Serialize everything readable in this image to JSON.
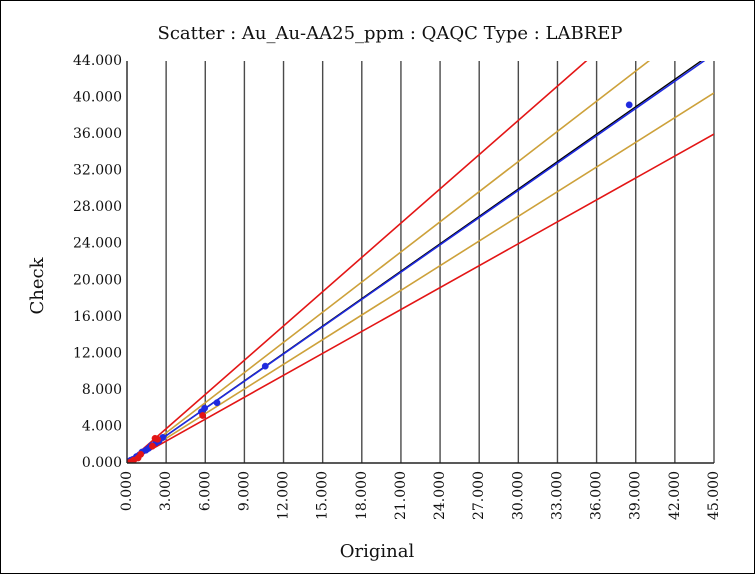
{
  "chart_data": {
    "type": "scatter",
    "title": "Scatter : Au_Au-AA25_ppm : QAQC Type : LABREP",
    "xlabel": "Original",
    "ylabel": "Check",
    "xlim": [
      0,
      45
    ],
    "ylim": [
      0,
      44
    ],
    "x_ticks": [
      "0.000",
      "3.000",
      "6.000",
      "9.000",
      "12.000",
      "15.000",
      "18.000",
      "21.000",
      "24.000",
      "27.000",
      "30.000",
      "33.000",
      "36.000",
      "39.000",
      "42.000",
      "45.000"
    ],
    "y_ticks": [
      "0.000",
      "4.000",
      "8.000",
      "12.000",
      "16.000",
      "20.000",
      "24.000",
      "28.000",
      "32.000",
      "36.000",
      "40.000",
      "44.000"
    ],
    "grid": "vertical",
    "series": [
      {
        "color": "#1f2adf",
        "points": [
          [
            0.05,
            0.05
          ],
          [
            0.12,
            0.1
          ],
          [
            0.18,
            0.2
          ],
          [
            0.28,
            0.3
          ],
          [
            0.45,
            0.4
          ],
          [
            0.72,
            0.7
          ],
          [
            0.95,
            0.9
          ],
          [
            1.15,
            1.2
          ],
          [
            1.45,
            1.4
          ],
          [
            1.65,
            1.6
          ],
          [
            1.85,
            1.9
          ],
          [
            2.2,
            2.2
          ],
          [
            2.45,
            2.4
          ],
          [
            2.75,
            2.8
          ],
          [
            5.7,
            5.6
          ],
          [
            5.95,
            6.0
          ],
          [
            6.9,
            6.6
          ],
          [
            10.6,
            10.6
          ],
          [
            38.5,
            39.2
          ]
        ]
      },
      {
        "color": "#e31515",
        "points": [
          [
            0.1,
            0.0
          ],
          [
            0.22,
            0.08
          ],
          [
            0.35,
            0.15
          ],
          [
            0.52,
            0.32
          ],
          [
            0.85,
            0.55
          ],
          [
            1.05,
            0.95
          ],
          [
            1.95,
            1.85
          ],
          [
            2.15,
            2.7
          ],
          [
            2.35,
            2.6
          ],
          [
            5.8,
            5.2
          ]
        ]
      }
    ],
    "lines": [
      {
        "slope": 1.0,
        "color": "#000000"
      },
      {
        "slope": 0.995,
        "color": "#1f2adf"
      },
      {
        "slope": 1.1,
        "color": "#cda13a"
      },
      {
        "slope": 0.9,
        "color": "#cda13a"
      },
      {
        "slope": 1.25,
        "color": "#e31515"
      },
      {
        "slope": 0.8,
        "color": "#e31515"
      }
    ]
  }
}
